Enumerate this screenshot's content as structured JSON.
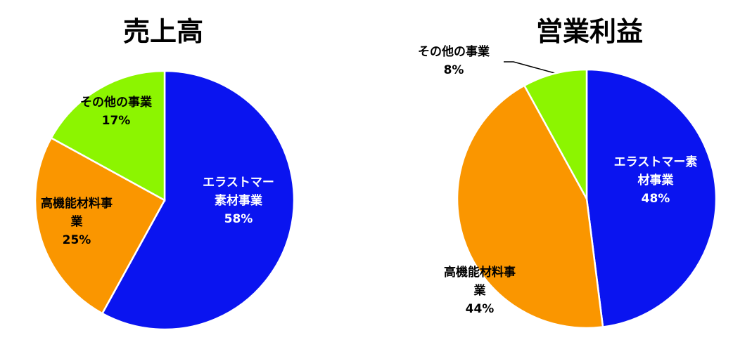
{
  "chart_data": [
    {
      "type": "pie",
      "title": "売上高",
      "slices": [
        {
          "label_lines": [
            "エラストマー",
            "素材事業"
          ],
          "pct_text": "58%",
          "value": 58,
          "color": "#0a14f0"
        },
        {
          "label_lines": [
            "高機能材料事",
            "業"
          ],
          "pct_text": "25%",
          "value": 25,
          "color": "#fa9600"
        },
        {
          "label_lines": [
            "その他の事業"
          ],
          "pct_text": "17%",
          "value": 17,
          "color": "#8cf500"
        }
      ]
    },
    {
      "type": "pie",
      "title": "営業利益",
      "slices": [
        {
          "label_lines": [
            "エラストマー素",
            "材事業"
          ],
          "pct_text": "48%",
          "value": 48,
          "color": "#0a14f0"
        },
        {
          "label_lines": [
            "高機能材料事",
            "業"
          ],
          "pct_text": "44%",
          "value": 44,
          "color": "#fa9600"
        },
        {
          "label_lines": [
            "その他の事業"
          ],
          "pct_text": "8%",
          "value": 8,
          "color": "#8cf500"
        }
      ]
    }
  ]
}
